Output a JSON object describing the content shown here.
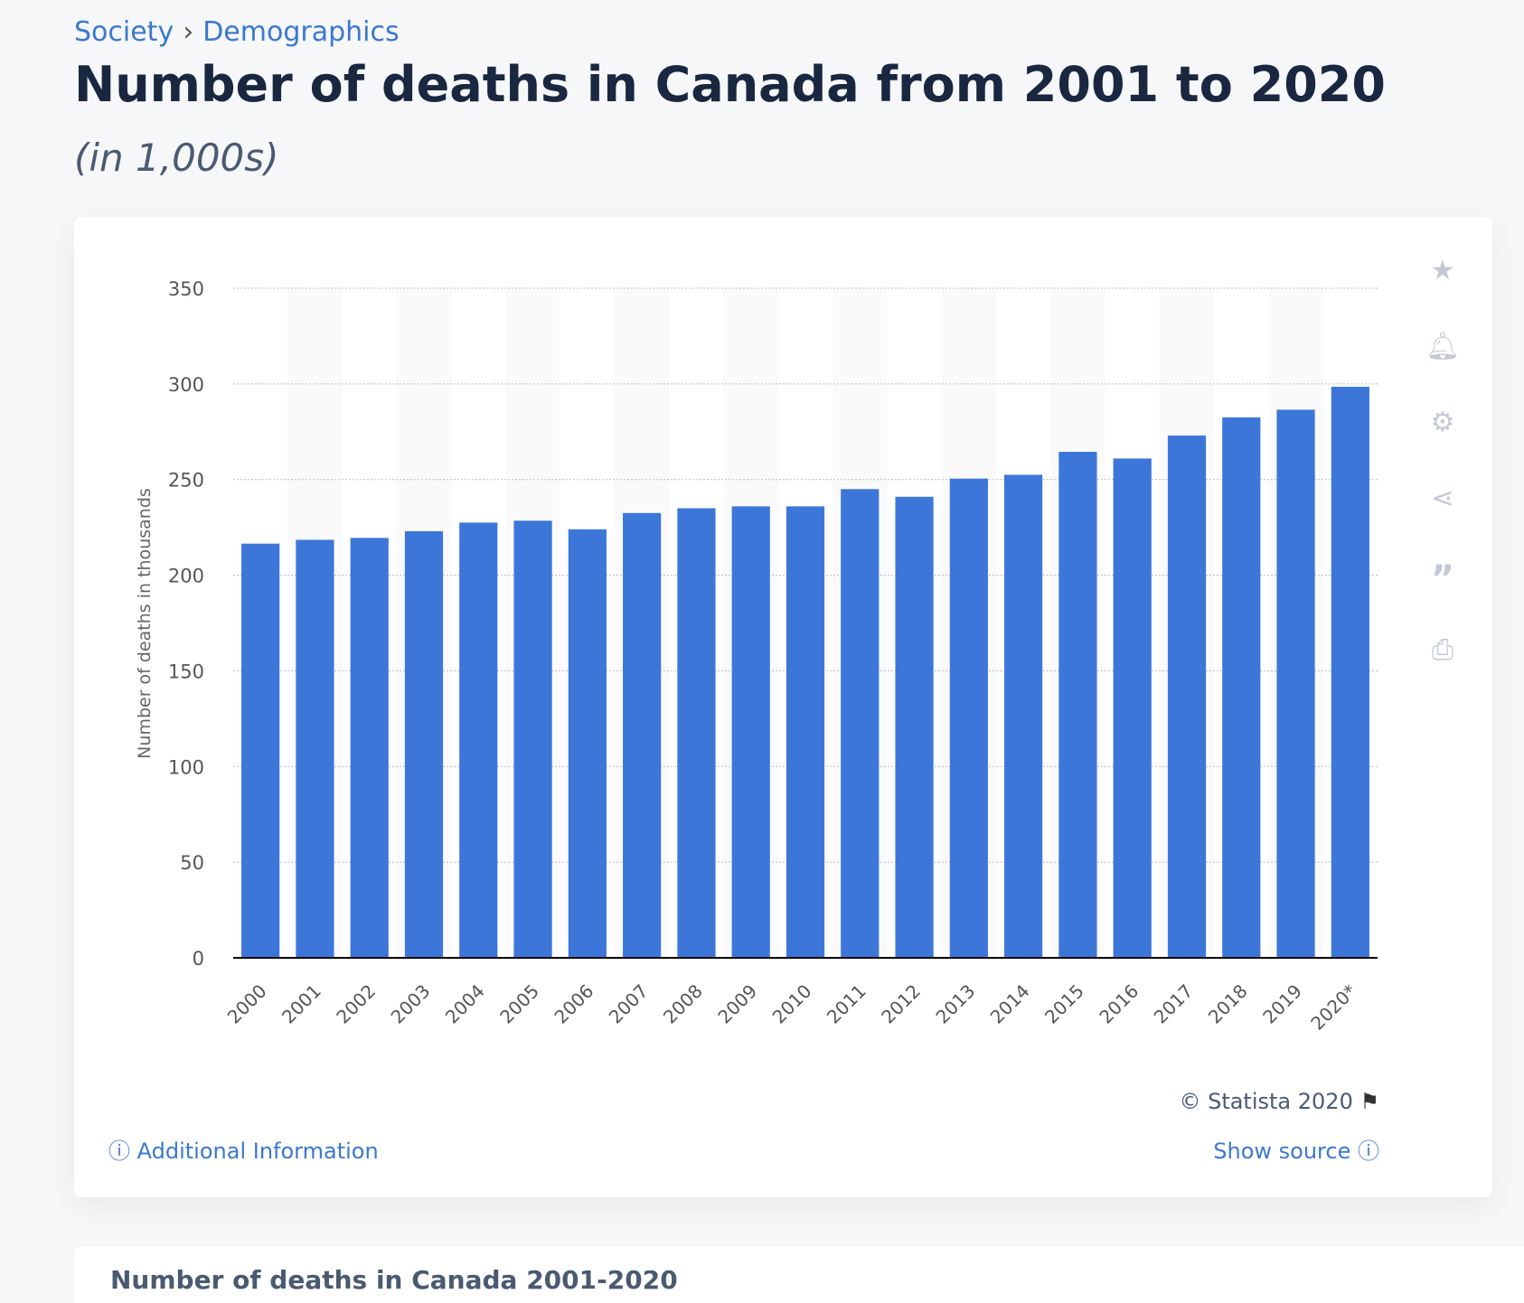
{
  "breadcrumb": [
    "Society",
    "Demographics"
  ],
  "breadcrumb_sep": "›",
  "title": "Number of deaths in Canada from 2001 to 2020",
  "subtitle": "(in 1,000s)",
  "footer": {
    "copyright": "© Statista 2020",
    "additional_info": "Additional Information",
    "show_source": "Show source"
  },
  "next_card_title": "Number of deaths in Canada 2001-2020",
  "colors": {
    "bar": "#3d76d9",
    "link": "#3a78d0"
  },
  "chart_data": {
    "type": "bar",
    "title": "Number of deaths in Canada from 2001 to 2020",
    "xlabel": "",
    "ylabel": "Number of deaths in thousands",
    "ylim": [
      0,
      350
    ],
    "yticks": [
      0,
      50,
      100,
      150,
      200,
      250,
      300,
      350
    ],
    "grid": true,
    "categories": [
      "2000",
      "2001",
      "2002",
      "2003",
      "2004",
      "2005",
      "2006",
      "2007",
      "2008",
      "2009",
      "2010",
      "2011",
      "2012",
      "2013",
      "2014",
      "2015",
      "2016",
      "2017",
      "2018",
      "2019",
      "2020*"
    ],
    "values": [
      216.5,
      218.5,
      219.5,
      223,
      227.5,
      228.5,
      224,
      232.5,
      235,
      236,
      236,
      245,
      241,
      250.5,
      252.5,
      264.5,
      261,
      273,
      282.5,
      286.5,
      298.5
    ]
  }
}
